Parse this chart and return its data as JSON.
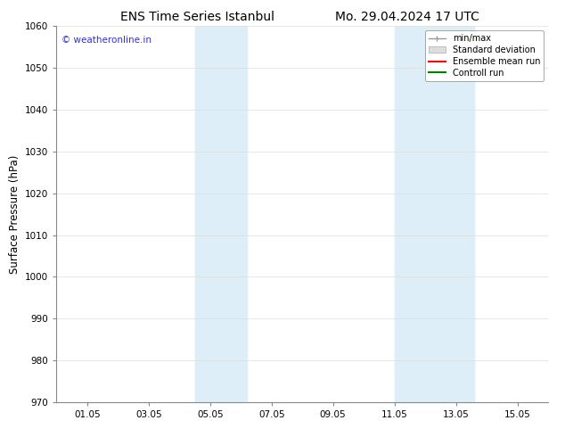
{
  "title_left": "ENS Time Series Istanbul",
  "title_right": "Mo. 29.04.2024 17 UTC",
  "ylabel": "Surface Pressure (hPa)",
  "ylim": [
    970,
    1060
  ],
  "yticks": [
    970,
    980,
    990,
    1000,
    1010,
    1020,
    1030,
    1040,
    1050,
    1060
  ],
  "xtick_labels": [
    "01.05",
    "03.05",
    "05.05",
    "07.05",
    "09.05",
    "11.05",
    "13.05",
    "15.05"
  ],
  "xtick_positions": [
    1,
    3,
    5,
    7,
    9,
    11,
    13,
    15
  ],
  "xmin": 0,
  "xmax": 16,
  "shaded_band_1": [
    4.5,
    6.2
  ],
  "shaded_band_2": [
    11.0,
    13.6
  ],
  "shaded_color": "#deeef8",
  "watermark_text": "© weatheronline.in",
  "watermark_color": "#3333cc",
  "legend_labels": [
    "min/max",
    "Standard deviation",
    "Ensemble mean run",
    "Controll run"
  ],
  "legend_colors_line": [
    "#999999",
    "#cccccc",
    "#ff0000",
    "#008000"
  ],
  "background_color": "#ffffff",
  "grid_color": "#dddddd",
  "title_fontsize": 10,
  "tick_fontsize": 7.5,
  "ylabel_fontsize": 8.5,
  "legend_fontsize": 7
}
